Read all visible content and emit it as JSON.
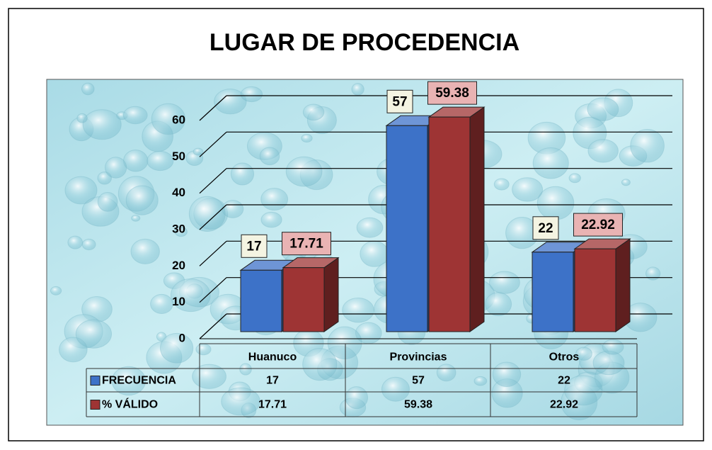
{
  "chart_data": {
    "type": "bar3d",
    "title": "LUGAR DE PROCEDENCIA",
    "categories": [
      "Huanuco",
      "Provincias",
      "Otros"
    ],
    "series": [
      {
        "name": "FRECUENCIA",
        "color": "#3d72c8",
        "values": [
          17,
          57,
          22
        ]
      },
      {
        "name": "% VÁLIDO",
        "color": "#9e3434",
        "values": [
          17.71,
          59.38,
          22.92
        ]
      }
    ],
    "ylim": [
      0,
      60
    ],
    "yticks": [
      0,
      10,
      20,
      30,
      40,
      50,
      60
    ],
    "grid": true,
    "data_table": true
  }
}
